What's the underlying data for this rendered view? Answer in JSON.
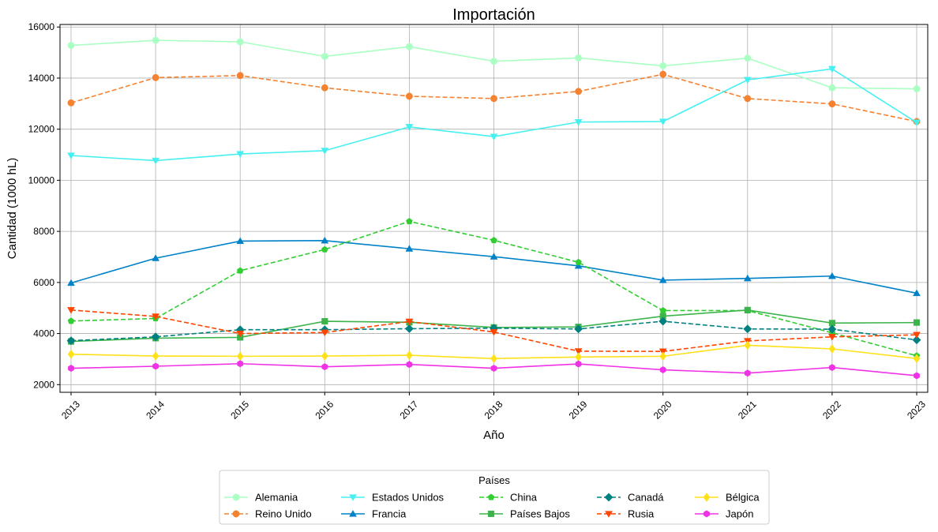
{
  "chart_data": {
    "type": "line",
    "title": "Importación",
    "xlabel": "Año",
    "ylabel": "Cantidad (1000 hL)",
    "x": [
      2013,
      2014,
      2015,
      2016,
      2017,
      2018,
      2019,
      2020,
      2021,
      2022,
      2023
    ],
    "x_tick_labels": [
      "2013",
      "2014",
      "2015",
      "2016",
      "2017",
      "2018",
      "2019",
      "2020",
      "2021",
      "2022",
      "2023"
    ],
    "ylim": [
      1700,
      16100
    ],
    "y_ticks": [
      2000,
      4000,
      6000,
      8000,
      10000,
      12000,
      14000,
      16000
    ],
    "y_tick_labels": [
      "2000",
      "4000",
      "6000",
      "8000",
      "10000",
      "12000",
      "14000",
      "16000"
    ],
    "grid": true,
    "legend": {
      "title": "Países",
      "position": "bottom-center",
      "columns": 5
    },
    "series": [
      {
        "name": "Alemania",
        "color": "#aaffc3",
        "dash": "solid",
        "marker": "circle",
        "values": [
          15280,
          15480,
          15420,
          14850,
          15230,
          14660,
          14790,
          14480,
          14780,
          13620,
          13580
        ]
      },
      {
        "name": "Reino Unido",
        "color": "#f58231",
        "dash": "dashed",
        "marker": "circle",
        "values": [
          13030,
          14020,
          14100,
          13620,
          13290,
          13200,
          13480,
          14150,
          13200,
          12990,
          12300
        ]
      },
      {
        "name": "Estados Unidos",
        "color": "#46f0f0",
        "dash": "solid",
        "marker": "triangle-down",
        "values": [
          10970,
          10770,
          11030,
          11160,
          12090,
          11710,
          12280,
          12300,
          13930,
          14360,
          12260
        ]
      },
      {
        "name": "Francia",
        "color": "#0082c8",
        "dash": "solid",
        "marker": "triangle-up",
        "values": [
          5980,
          6950,
          7620,
          7640,
          7320,
          7010,
          6650,
          6090,
          6160,
          6250,
          5580
        ]
      },
      {
        "name": "China",
        "color": "#32cd32",
        "dash": "dashed",
        "marker": "pentagon",
        "values": [
          4490,
          4590,
          6460,
          7290,
          8390,
          7650,
          6790,
          4900,
          4900,
          4030,
          3130
        ]
      },
      {
        "name": "Países Bajos",
        "color": "#3cb44b",
        "dash": "solid",
        "marker": "square",
        "values": [
          3690,
          3820,
          3850,
          4480,
          4440,
          4240,
          4260,
          4680,
          4920,
          4410,
          4430
        ]
      },
      {
        "name": "Canadá",
        "color": "#008080",
        "dash": "dashed",
        "marker": "diamond",
        "values": [
          3720,
          3870,
          4150,
          4150,
          4190,
          4210,
          4180,
          4480,
          4180,
          4170,
          3750
        ]
      },
      {
        "name": "Rusia",
        "color": "#ff4500",
        "dash": "dashed",
        "marker": "triangle-down",
        "values": [
          4920,
          4670,
          4000,
          4040,
          4470,
          4060,
          3310,
          3300,
          3710,
          3870,
          3950
        ]
      },
      {
        "name": "Bélgica",
        "color": "#ffe119",
        "dash": "solid",
        "marker": "thin-diamond",
        "values": [
          3190,
          3120,
          3110,
          3120,
          3150,
          3020,
          3080,
          3110,
          3540,
          3400,
          3020
        ]
      },
      {
        "name": "Japón",
        "color": "#f032e6",
        "dash": "solid",
        "marker": "hexagon",
        "values": [
          2640,
          2720,
          2820,
          2700,
          2790,
          2640,
          2810,
          2580,
          2450,
          2670,
          2350
        ]
      }
    ]
  }
}
